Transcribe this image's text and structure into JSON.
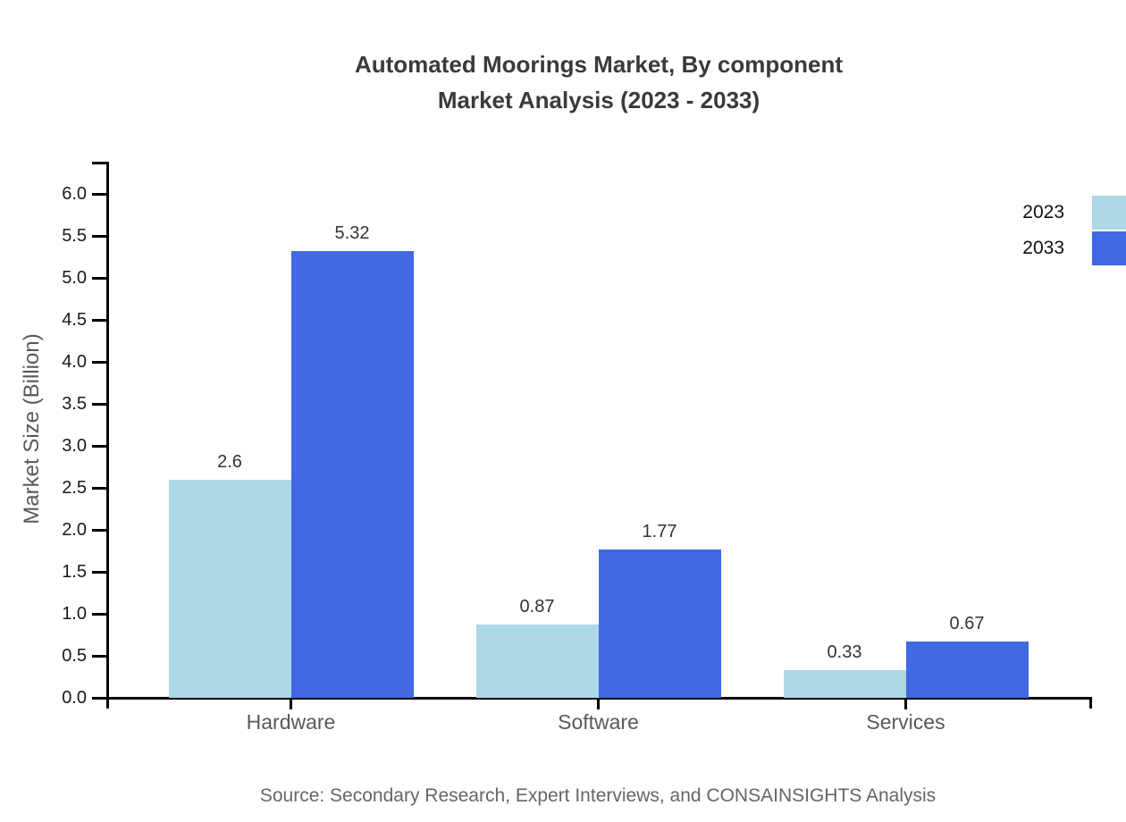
{
  "title": {
    "line1": "Automated Moorings Market, By component",
    "line2": "Market Analysis (2023 - 2033)"
  },
  "legend": {
    "items": [
      {
        "label": "2023",
        "color": "#ADD8E6"
      },
      {
        "label": "2033",
        "color": "#4169E1"
      }
    ]
  },
  "y_axis": {
    "label": "Market Size (Billion)"
  },
  "source": {
    "text": "Source: Secondary Research, Expert Interviews, and CONSAINSIGHTS Analysis"
  },
  "chart_data": {
    "type": "bar",
    "title": "Automated Moorings Market, By component Market Analysis (2023 - 2033)",
    "categories": [
      "Hardware",
      "Software",
      "Services"
    ],
    "series": [
      {
        "name": "2023",
        "color": "#ADD8E6",
        "values": [
          2.6,
          0.87,
          0.33
        ],
        "value_labels": [
          "2.6",
          "0.87",
          "0.33"
        ]
      },
      {
        "name": "2033",
        "color": "#4169E1",
        "values": [
          5.32,
          1.77,
          0.67
        ],
        "value_labels": [
          "5.32",
          "1.77",
          "0.67"
        ]
      }
    ],
    "xlabel": "",
    "ylabel": "Market Size (Billion)",
    "ylim": [
      0,
      6.5
    ],
    "yticks": [
      0,
      0.5,
      1,
      1.5,
      2,
      2.5,
      3,
      3.5,
      4,
      4.5,
      5,
      5.5,
      6
    ],
    "grid": false,
    "legend_position": "upper right"
  }
}
